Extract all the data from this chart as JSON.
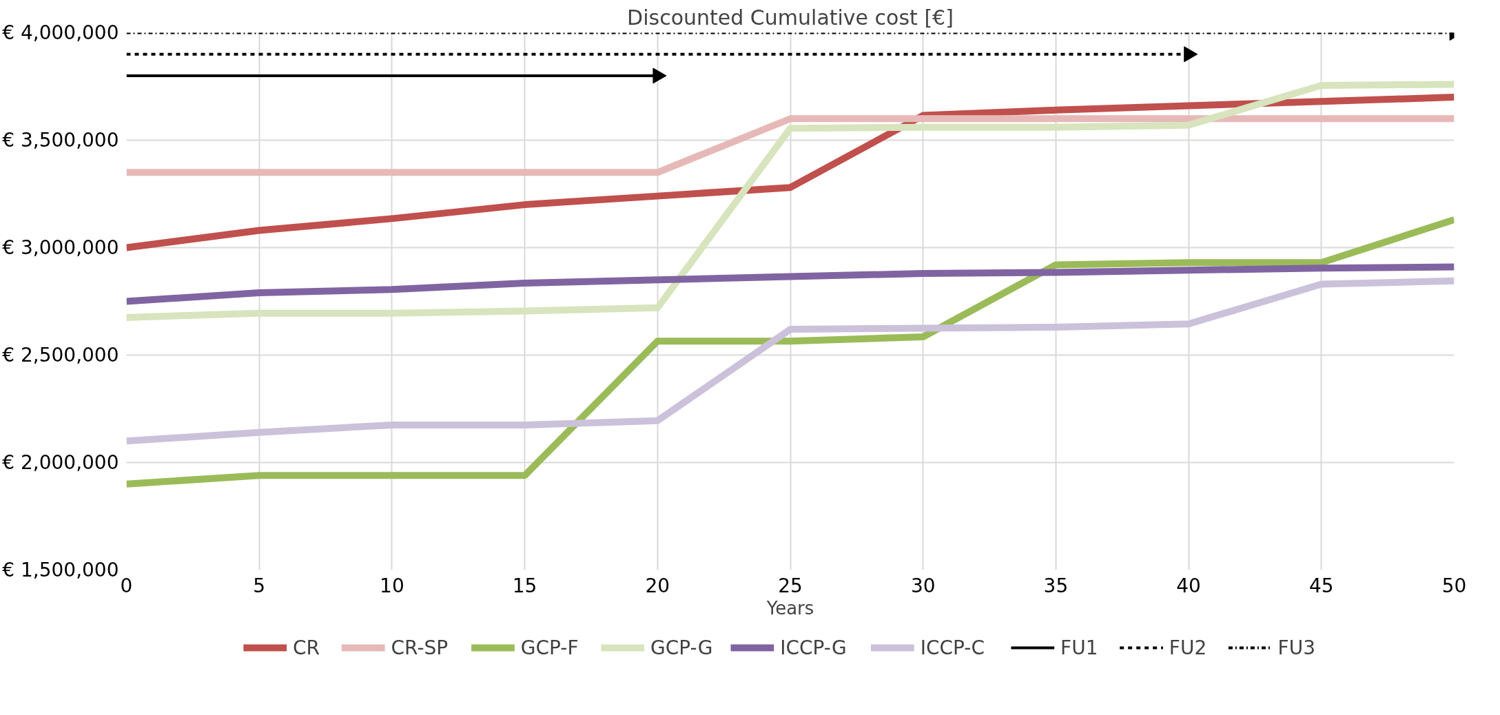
{
  "chart_data": {
    "type": "line",
    "title": "Discounted Cumulative cost [€]",
    "xlabel": "Years",
    "x": [
      0,
      5,
      10,
      15,
      20,
      25,
      30,
      35,
      40,
      45,
      50
    ],
    "xlim": [
      0,
      50
    ],
    "xticks": [
      0,
      5,
      10,
      15,
      20,
      25,
      30,
      35,
      40,
      45,
      50
    ],
    "ylim": [
      1500000,
      4000000
    ],
    "yticks": [
      {
        "value": 1500000,
        "label": "€ 1,500,000"
      },
      {
        "value": 2000000,
        "label": "€ 2,000,000"
      },
      {
        "value": 2500000,
        "label": "€ 2,500,000"
      },
      {
        "value": 3000000,
        "label": "€ 3,000,000"
      },
      {
        "value": 3500000,
        "label": "€ 3,500,000"
      },
      {
        "value": 4000000,
        "label": "€ 4,000,000"
      }
    ],
    "grid": true,
    "legend": "bottom",
    "line_style": "solid",
    "marker": "none",
    "series": [
      {
        "name": "CR",
        "color": "#c0504d",
        "values": [
          3000000,
          3080000,
          3135000,
          3200000,
          3240000,
          3280000,
          3615000,
          3640000,
          3660000,
          3680000,
          3700000
        ]
      },
      {
        "name": "CR-SP",
        "color": "#e6b9b8",
        "values": [
          3350000,
          3350000,
          3350000,
          3350000,
          3350000,
          3600000,
          3600000,
          3600000,
          3600000,
          3600000,
          3600000
        ]
      },
      {
        "name": "GCP-F",
        "color": "#9bbb59",
        "values": [
          1900000,
          1940000,
          1940000,
          1940000,
          2565000,
          2565000,
          2585000,
          2920000,
          2930000,
          2930000,
          3130000
        ]
      },
      {
        "name": "GCP-G",
        "color": "#d7e4bd",
        "values": [
          2675000,
          2695000,
          2695000,
          2705000,
          2720000,
          3555000,
          3560000,
          3560000,
          3570000,
          3755000,
          3760000
        ]
      },
      {
        "name": "ICCP-G",
        "color": "#8064a2",
        "values": [
          2750000,
          2790000,
          2805000,
          2835000,
          2850000,
          2865000,
          2880000,
          2885000,
          2895000,
          2905000,
          2910000
        ]
      },
      {
        "name": "ICCP-C",
        "color": "#ccc1da",
        "values": [
          2100000,
          2140000,
          2175000,
          2175000,
          2195000,
          2620000,
          2625000,
          2630000,
          2645000,
          2830000,
          2845000
        ]
      },
      {
        "name": "FU1",
        "color": "#000000",
        "x": [
          0,
          20
        ],
        "values": [
          3800000,
          3800000
        ],
        "marker": "triangle"
      },
      {
        "name": "FU2",
        "color": "#000000",
        "x": [
          0,
          40
        ],
        "values": [
          3900000,
          3900000
        ],
        "line_style": "dashed",
        "marker": "triangle"
      },
      {
        "name": "FU3",
        "color": "#000000",
        "x": [
          0,
          50
        ],
        "values": [
          4000000,
          4000000
        ],
        "line_style": "dashdot",
        "marker": "triangle"
      }
    ]
  }
}
